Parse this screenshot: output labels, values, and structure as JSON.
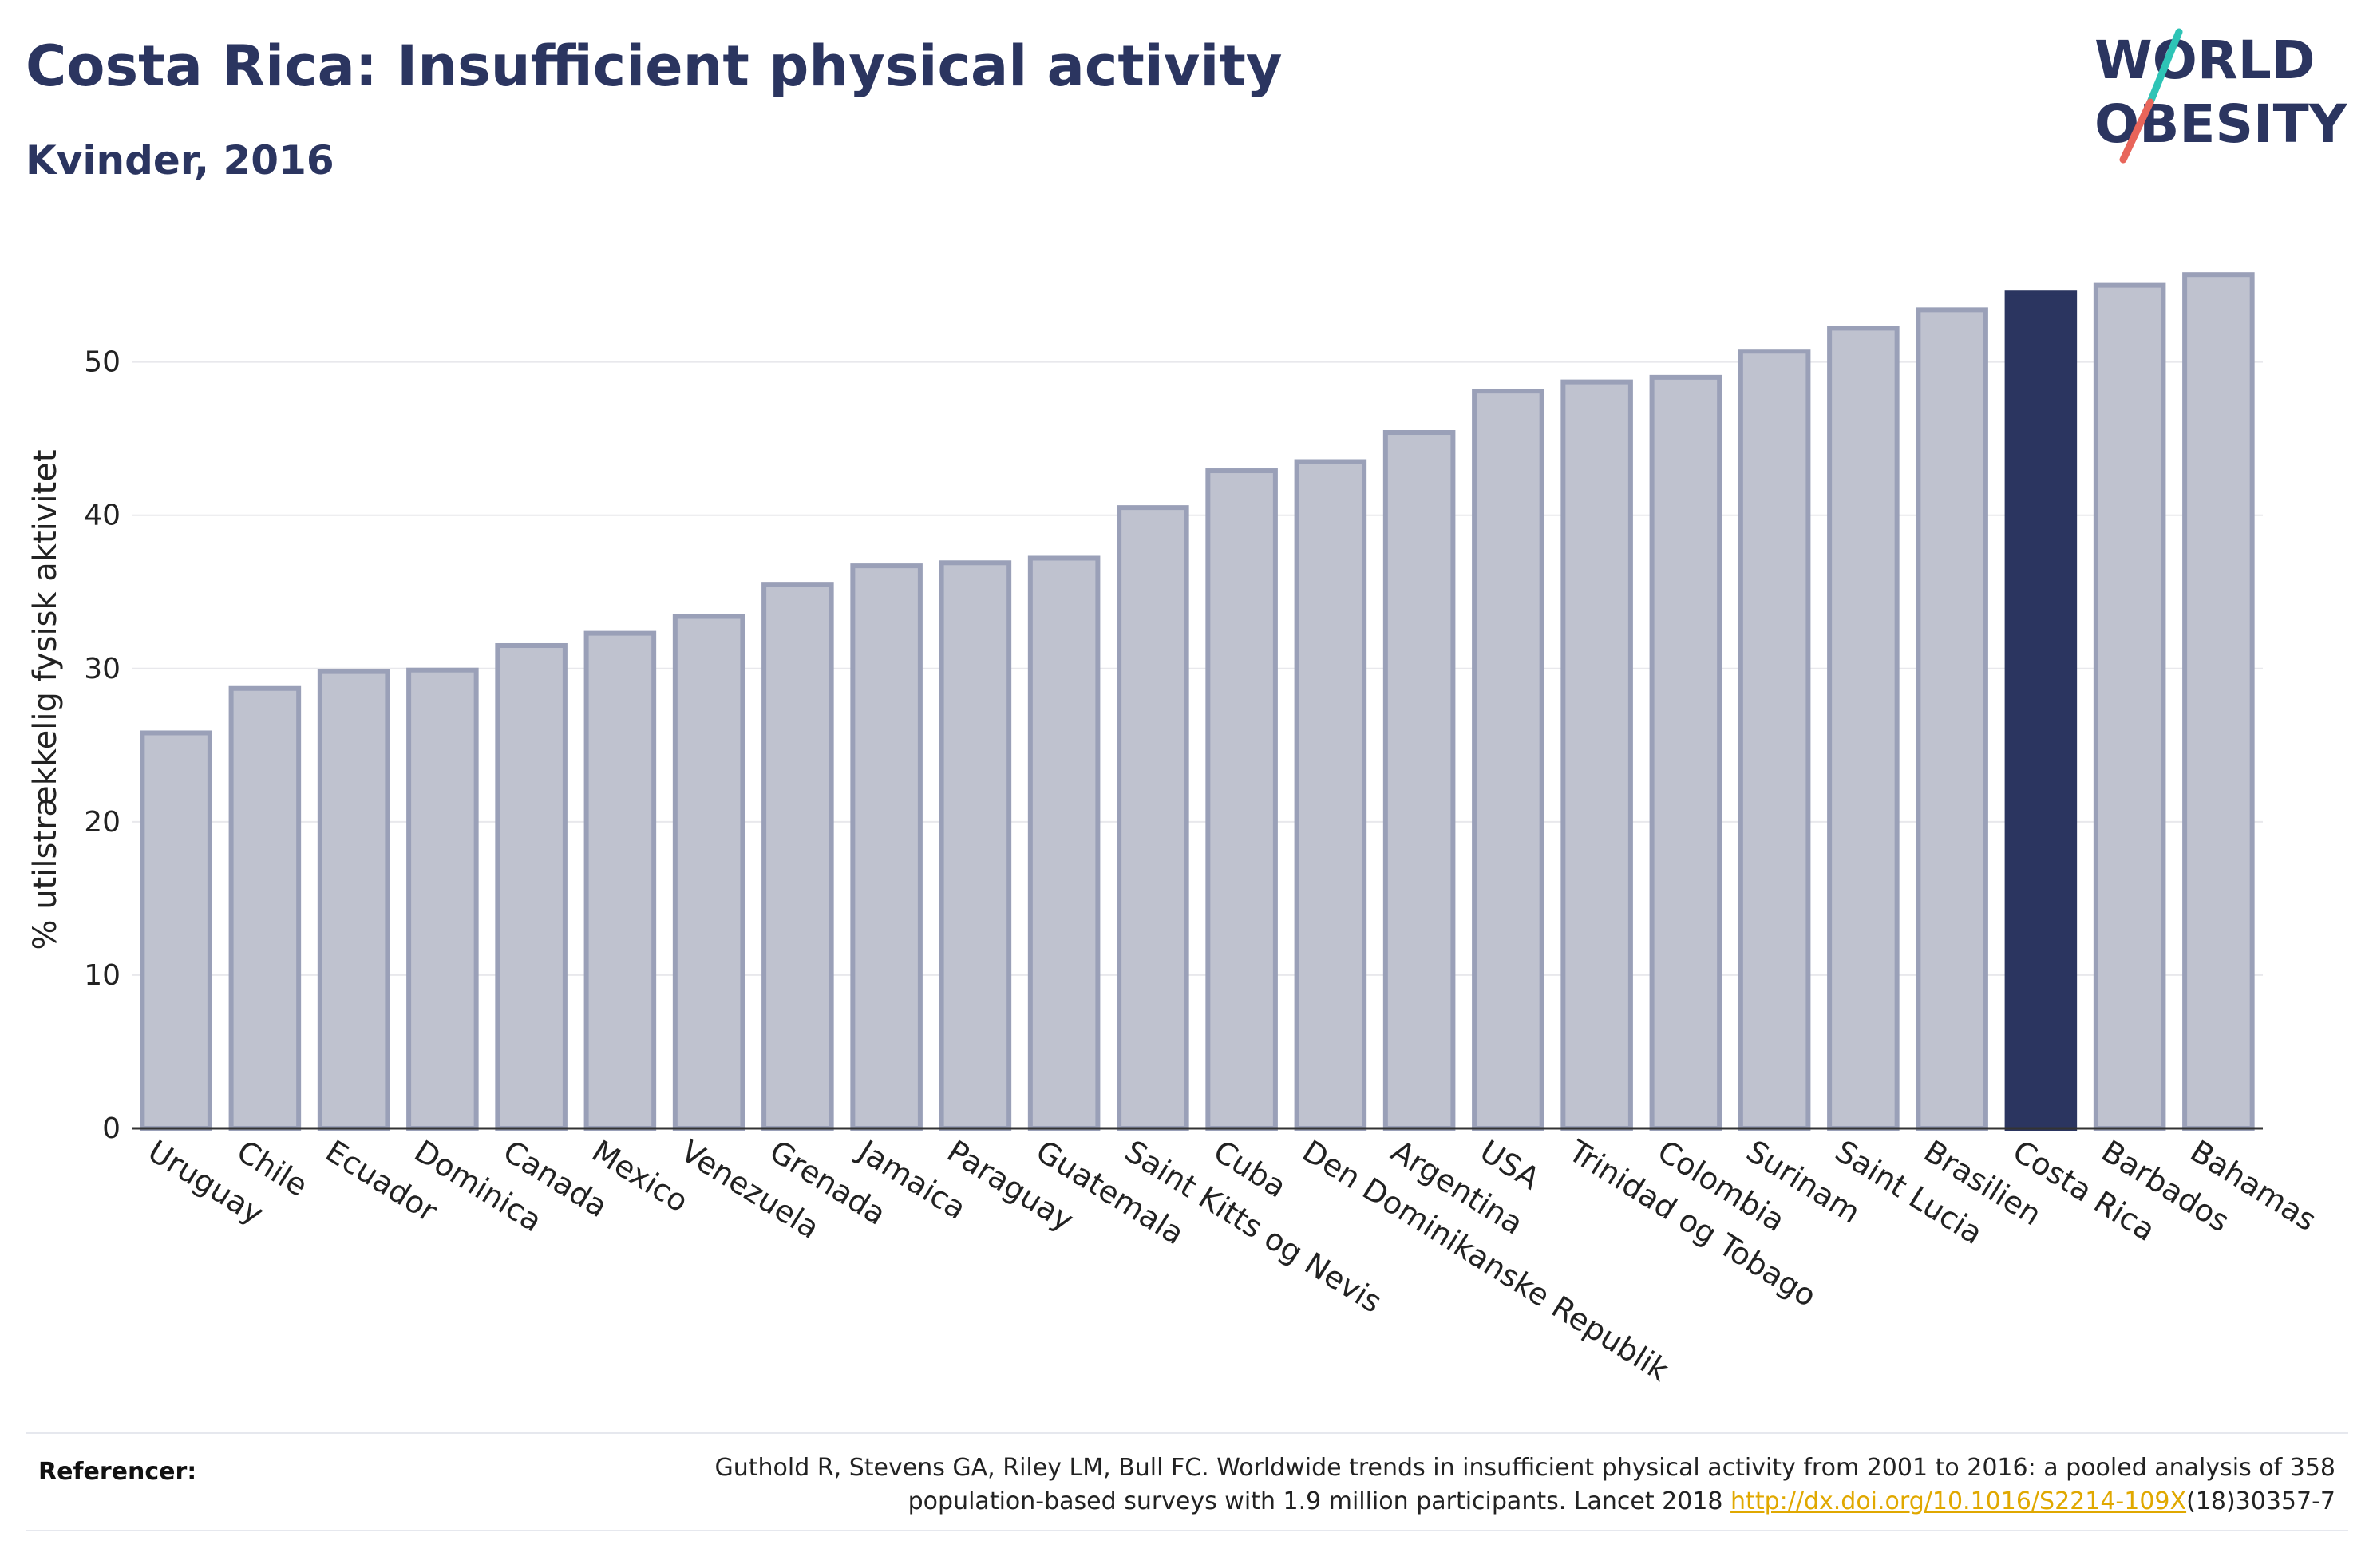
{
  "header": {
    "title": "Costa Rica: Insufficient physical activity",
    "subtitle": "Kvinder, 2016"
  },
  "logo": {
    "line1": "WORLD",
    "line2": "OBESITY"
  },
  "colors": {
    "highlight": "#2b3560",
    "bar_fill": "#bfc2cf",
    "bar_stroke": "#9aa0b8",
    "grid": "#e8e8ec",
    "axis": "#333333",
    "logo_teal": "#2ec4b6",
    "logo_coral": "#e8655a"
  },
  "chart_data": {
    "type": "bar",
    "title": "Costa Rica: Insufficient physical activity",
    "subtitle": "Kvinder, 2016",
    "ylabel": "% utilstrækkelig fysisk aktivitet",
    "xlabel": "",
    "ylim": [
      0,
      58
    ],
    "yticks": [
      0,
      10,
      20,
      30,
      40,
      50
    ],
    "grid": true,
    "highlight_category": "Costa Rica",
    "categories": [
      "Uruguay",
      "Chile",
      "Ecuador",
      "Dominica",
      "Canada",
      "Mexico",
      "Venezuela",
      "Grenada",
      "Jamaica",
      "Paraguay",
      "Guatemala",
      "Saint Kitts og Nevis",
      "Cuba",
      "Den Dominikanske Republik",
      "Argentina",
      "USA",
      "Trinidad og Tobago",
      "Colombia",
      "Surinam",
      "Saint Lucia",
      "Brasilien",
      "Costa Rica",
      "Barbados",
      "Bahamas"
    ],
    "values": [
      25.8,
      28.7,
      29.8,
      29.9,
      31.5,
      32.3,
      33.4,
      35.5,
      36.7,
      36.9,
      37.2,
      40.5,
      42.9,
      43.5,
      45.4,
      48.1,
      48.7,
      49.0,
      50.7,
      52.2,
      53.4,
      54.5,
      55.0,
      55.7
    ]
  },
  "references": {
    "label": "Referencer:",
    "text_line1": "Guthold R, Stevens GA, Riley LM, Bull FC. Worldwide trends in insufficient physical activity from 2001 to 2016: a pooled analysis of 358",
    "text_line2_pre": "population-based surveys with 1.9 million participants. Lancet 2018 ",
    "link": "http://dx.doi.org/10.1016/S2214-109X",
    "text_line2_post": "(18)30357-7"
  }
}
